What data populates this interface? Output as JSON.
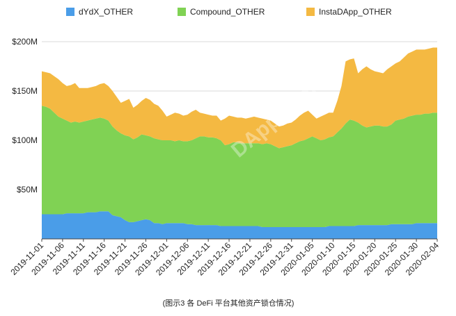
{
  "chart_data": {
    "type": "stacked-area",
    "categories": [
      "2019-11-01",
      null,
      null,
      null,
      null,
      "2019-11-06",
      null,
      null,
      null,
      null,
      "2019-11-11",
      null,
      null,
      null,
      null,
      "2019-11-16",
      null,
      null,
      null,
      null,
      "2019-11-21",
      null,
      null,
      null,
      null,
      "2019-11-26",
      null,
      null,
      null,
      null,
      "2019-12-01",
      null,
      null,
      null,
      null,
      "2019-12-06",
      null,
      null,
      null,
      null,
      "2019-12-11",
      null,
      null,
      null,
      null,
      "2019-12-16",
      null,
      null,
      null,
      null,
      "2019-12-21",
      null,
      null,
      null,
      null,
      "2019-12-26",
      null,
      null,
      null,
      null,
      "2019-12-31",
      null,
      null,
      null,
      null,
      "2020-01-05",
      null,
      null,
      null,
      null,
      "2020-01-10",
      null,
      null,
      null,
      null,
      "2020-01-15",
      null,
      null,
      null,
      null,
      "2020-01-20",
      null,
      null,
      null,
      null,
      "2020-01-25",
      null,
      null,
      null,
      null,
      "2020-01-30",
      null,
      null,
      null,
      null,
      "2020-02-04"
    ],
    "series": [
      {
        "name": "dYdX_OTHER",
        "color": "#4a9de8",
        "values": [
          25,
          25,
          25,
          25,
          25,
          25,
          26,
          26,
          26,
          26,
          26,
          27,
          27,
          27,
          28,
          28,
          28,
          24,
          23,
          22,
          19,
          17,
          17,
          18,
          19,
          20,
          19,
          16,
          16,
          15,
          16,
          16,
          16,
          16,
          16,
          15,
          15,
          14,
          14,
          14,
          14,
          14,
          14,
          13,
          13,
          13,
          13,
          13,
          13,
          13,
          13,
          13,
          13,
          12,
          12,
          12,
          12,
          12,
          12,
          12,
          12,
          12,
          12,
          12,
          12,
          12,
          12,
          12,
          12,
          13,
          13,
          13,
          13,
          13,
          13,
          13,
          14,
          14,
          14,
          14,
          14,
          14,
          14,
          14,
          15,
          15,
          15,
          15,
          15,
          15,
          16,
          16,
          16,
          16,
          16,
          16
        ]
      },
      {
        "name": "Compound_OTHER",
        "color": "#80d254",
        "values": [
          110,
          109,
          107,
          103,
          99,
          97,
          94,
          92,
          93,
          92,
          93,
          93,
          94,
          95,
          95,
          94,
          92,
          90,
          87,
          85,
          86,
          87,
          84,
          85,
          87,
          85,
          85,
          86,
          85,
          85,
          84,
          84,
          83,
          84,
          83,
          84,
          85,
          88,
          90,
          90,
          89,
          89,
          88,
          87,
          82,
          83,
          85,
          85,
          84,
          84,
          84,
          84,
          84,
          84,
          85,
          84,
          82,
          80,
          81,
          82,
          83,
          85,
          87,
          88,
          90,
          92,
          90,
          88,
          89,
          90,
          91,
          95,
          99,
          104,
          108,
          107,
          104,
          101,
          99,
          100,
          101,
          101,
          100,
          100,
          101,
          105,
          106,
          107,
          109,
          110,
          110,
          110,
          111,
          111,
          112,
          112
        ]
      },
      {
        "name": "InstaDApp_OTHER",
        "color": "#f4b942",
        "values": [
          35,
          35,
          36,
          37,
          38,
          36,
          35,
          38,
          39,
          35,
          34,
          33,
          33,
          33,
          34,
          36,
          35,
          36,
          34,
          31,
          35,
          38,
          32,
          33,
          34,
          38,
          37,
          35,
          34,
          30,
          24,
          26,
          29,
          27,
          26,
          27,
          29,
          29,
          24,
          23,
          23,
          22,
          23,
          20,
          27,
          29,
          26,
          25,
          26,
          25,
          26,
          27,
          26,
          26,
          24,
          24,
          23,
          22,
          22,
          23,
          23,
          24,
          26,
          28,
          28,
          22,
          20,
          24,
          25,
          25,
          24,
          32,
          43,
          63,
          61,
          63,
          50,
          57,
          62,
          58,
          55,
          54,
          54,
          58,
          59,
          58,
          59,
          62,
          64,
          65,
          66,
          66,
          65,
          66,
          66,
          66
        ]
      }
    ],
    "ylim": [
      0,
      200
    ],
    "yticks": [
      {
        "value": 50,
        "label": "$50M"
      },
      {
        "value": 100,
        "label": "$100M"
      },
      {
        "value": 150,
        "label": "$150M"
      },
      {
        "value": 200,
        "label": "$200M"
      }
    ],
    "grid": true,
    "legend": "top",
    "watermark": "DAppTotal",
    "caption": "(图示3 各 DeFi 平台其他资产锁仓情况)"
  }
}
